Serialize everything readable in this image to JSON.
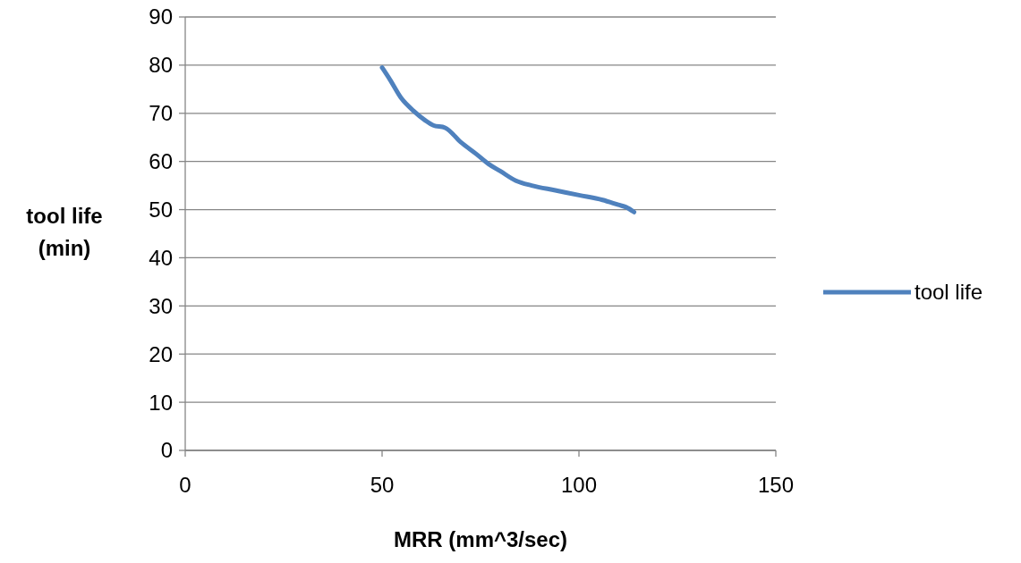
{
  "chart_data": {
    "type": "line",
    "xlabel": "MRR (mm^3/sec)",
    "ylabel": "tool life\n(min)",
    "series": [
      {
        "name": "tool life",
        "color": "#4f81bd",
        "x": [
          50,
          52,
          55,
          58,
          61,
          63,
          66,
          70,
          74,
          77,
          80,
          84,
          88,
          94,
          100,
          106,
          110,
          112,
          114
        ],
        "values": [
          79.5,
          77,
          73,
          70.5,
          68.5,
          67.5,
          67,
          64,
          61.5,
          59.5,
          58,
          56,
          55,
          54,
          53,
          52,
          51,
          50.5,
          49.5
        ]
      }
    ],
    "xlim": [
      0,
      150
    ],
    "xticks": [
      0,
      50,
      100,
      150
    ],
    "ylim": [
      0,
      90
    ],
    "yticks": [
      0,
      10,
      20,
      30,
      40,
      50,
      60,
      70,
      80,
      90
    ],
    "grid": "y",
    "legend": "right",
    "marker": "none",
    "line_style": "solid"
  }
}
